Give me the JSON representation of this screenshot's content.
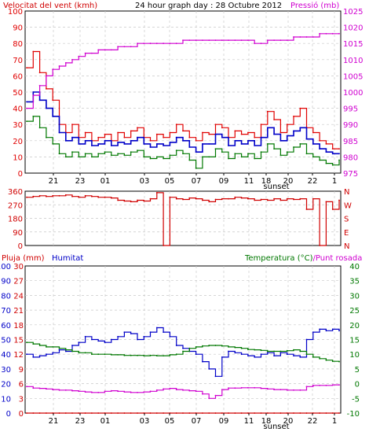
{
  "header": {
    "left_title": "Velocitat del vent (kmh)",
    "center_title": "24 hour graph day : 28 Octubre 2012",
    "right_title": "Pressió (mb)"
  },
  "colors": {
    "wind_gust": "#e00000",
    "wind_avg": "#0000c8",
    "wind_low": "#007800",
    "pressure": "#d000d0",
    "direction": "#d00000",
    "humidity": "#0000c8",
    "temperature": "#007800",
    "dewpoint": "#d000d0",
    "rain": "#d00000",
    "axis": "#000000",
    "grid": "#c8c8c8"
  },
  "time_ticks": [
    "21",
    "23",
    "01",
    "03",
    "05",
    "07",
    "09",
    "11",
    "18",
    "20",
    "22",
    "1"
  ],
  "sunset_label": "sunset",
  "chart_data": [
    {
      "type": "line",
      "id": "wind_pressure",
      "title": "24 hour graph day : 28 Octubre 2012",
      "ylabel_left": "Velocitat del vent (kmh)",
      "ylabel_right": "Pressió (mb)",
      "ylim_left": [
        0,
        100
      ],
      "ylim_right": [
        975,
        1025
      ],
      "left_ticks": [
        0,
        10,
        20,
        30,
        40,
        50,
        60,
        70,
        80,
        90,
        100
      ],
      "right_ticks": [
        975,
        980,
        985,
        990,
        995,
        1000,
        1005,
        1010,
        1015,
        1020,
        1025
      ],
      "grid": true,
      "x_index": [
        0,
        1,
        2,
        3,
        4,
        5,
        6,
        7,
        8,
        9,
        10,
        11,
        12,
        13,
        14,
        15,
        16,
        17,
        18,
        19,
        20,
        21,
        22,
        23,
        24,
        25,
        26,
        27,
        28,
        29,
        30,
        31,
        32,
        33,
        34,
        35,
        36,
        37,
        38,
        39,
        40,
        41,
        42,
        43,
        44,
        45,
        46,
        47,
        48
      ],
      "series": [
        {
          "name": "gust",
          "axis": "left",
          "values": [
            65,
            75,
            62,
            52,
            45,
            30,
            25,
            30,
            22,
            25,
            20,
            22,
            24,
            20,
            25,
            22,
            26,
            28,
            22,
            20,
            24,
            22,
            25,
            30,
            26,
            22,
            20,
            25,
            24,
            30,
            28,
            22,
            26,
            24,
            25,
            22,
            30,
            38,
            33,
            25,
            30,
            35,
            40,
            28,
            25,
            20,
            18,
            15,
            15
          ]
        },
        {
          "name": "average",
          "axis": "left",
          "values": [
            44,
            50,
            45,
            40,
            35,
            25,
            20,
            22,
            18,
            20,
            17,
            18,
            20,
            17,
            19,
            18,
            20,
            22,
            18,
            16,
            18,
            17,
            19,
            22,
            20,
            16,
            13,
            18,
            18,
            24,
            22,
            17,
            20,
            18,
            20,
            17,
            22,
            28,
            24,
            20,
            23,
            26,
            28,
            21,
            18,
            15,
            13,
            12,
            12
          ]
        },
        {
          "name": "low",
          "axis": "left",
          "values": [
            32,
            35,
            28,
            22,
            18,
            12,
            10,
            13,
            10,
            12,
            10,
            12,
            13,
            11,
            12,
            11,
            13,
            14,
            10,
            9,
            10,
            9,
            11,
            14,
            12,
            8,
            3,
            10,
            10,
            15,
            13,
            9,
            12,
            10,
            12,
            9,
            13,
            18,
            15,
            11,
            13,
            16,
            18,
            12,
            10,
            8,
            6,
            5,
            8
          ]
        },
        {
          "name": "pressure",
          "axis": "right",
          "values": [
            995,
            999,
            1002,
            1005,
            1007,
            1008,
            1009,
            1010,
            1011,
            1012,
            1012,
            1013,
            1013,
            1013,
            1014,
            1014,
            1014,
            1015,
            1015,
            1015,
            1015,
            1015,
            1015,
            1015,
            1016,
            1016,
            1016,
            1016,
            1016,
            1016,
            1016,
            1016,
            1016,
            1016,
            1016,
            1015,
            1015,
            1016,
            1016,
            1016,
            1016,
            1017,
            1017,
            1017,
            1017,
            1018,
            1018,
            1018,
            1018
          ]
        }
      ]
    },
    {
      "type": "line",
      "id": "wind_direction",
      "ylim": [
        0,
        360
      ],
      "left_ticks": [
        0,
        90,
        180,
        270,
        360
      ],
      "right_labels": [
        "N",
        "E",
        "S",
        "W",
        "N"
      ],
      "grid": true,
      "series": [
        {
          "name": "direction",
          "values": [
            320,
            325,
            330,
            325,
            330,
            330,
            335,
            325,
            320,
            330,
            325,
            320,
            320,
            315,
            300,
            295,
            290,
            300,
            295,
            310,
            350,
            0,
            320,
            310,
            305,
            315,
            310,
            300,
            290,
            305,
            310,
            310,
            320,
            315,
            310,
            300,
            305,
            300,
            310,
            300,
            310,
            305,
            310,
            240,
            310,
            0,
            290,
            240,
            300
          ]
        }
      ]
    },
    {
      "type": "line",
      "id": "humidity_temp_rain",
      "labels": {
        "rain": "Pluja (mm)",
        "humidity": "Humitat",
        "temperature_dew": "Temperatura (°C)/Punt rosada"
      },
      "ylim_rain": [
        0,
        30
      ],
      "ylim_humidity": [
        0,
        100
      ],
      "ylim_temp": [
        -10,
        40
      ],
      "rain_ticks": [
        0,
        3,
        6,
        9,
        12,
        15,
        18,
        21,
        24,
        27,
        30
      ],
      "humidity_ticks": [
        0,
        10,
        20,
        30,
        40,
        50,
        60,
        70,
        80,
        90,
        100
      ],
      "temp_ticks": [
        -10,
        -5,
        0,
        5,
        10,
        15,
        20,
        25,
        30,
        35,
        40
      ],
      "grid": true,
      "series": [
        {
          "name": "humidity",
          "axis": "humidity",
          "values": [
            40,
            38,
            39,
            40,
            41,
            43,
            42,
            46,
            48,
            52,
            50,
            49,
            48,
            50,
            52,
            55,
            54,
            50,
            52,
            55,
            58,
            55,
            52,
            46,
            44,
            42,
            40,
            35,
            30,
            25,
            38,
            42,
            41,
            40,
            39,
            38,
            40,
            41,
            39,
            41,
            40,
            39,
            38,
            50,
            55,
            57,
            56,
            57,
            56
          ]
        },
        {
          "name": "temperature",
          "axis": "temp",
          "values": [
            14,
            13.5,
            13,
            12.5,
            12.5,
            12,
            11.5,
            11,
            10.5,
            10.5,
            10,
            10,
            10,
            9.8,
            9.8,
            9.6,
            9.6,
            9.6,
            9.5,
            9.6,
            9.5,
            9.5,
            9.8,
            10,
            11,
            12,
            12.5,
            12.8,
            13,
            13,
            12.8,
            12.5,
            12.3,
            12,
            11.6,
            11.5,
            11.3,
            11,
            11,
            11,
            11.2,
            11.5,
            11,
            10,
            9,
            8.5,
            8,
            7.6,
            7.5
          ]
        },
        {
          "name": "dewpoint",
          "axis": "temp",
          "values": [
            -1,
            -1.5,
            -1.6,
            -1.8,
            -2,
            -2.2,
            -2.2,
            -2.4,
            -2.6,
            -2.8,
            -3,
            -3,
            -2.6,
            -2.4,
            -2.6,
            -2.8,
            -3,
            -3,
            -2.8,
            -2.6,
            -2.2,
            -1.8,
            -1.6,
            -2,
            -2.2,
            -2.4,
            -2.6,
            -3.5,
            -5,
            -4,
            -2,
            -1.5,
            -1.5,
            -1.4,
            -1.4,
            -1.4,
            -1.6,
            -1.8,
            -2,
            -2,
            -2.2,
            -2.2,
            -2.2,
            -1,
            -0.6,
            -0.6,
            -0.6,
            -0.4,
            -0.4
          ]
        },
        {
          "name": "rain",
          "axis": "rain",
          "values": [
            0,
            0,
            0,
            0,
            0,
            0,
            0,
            0,
            0,
            0,
            0,
            0,
            0,
            0,
            0,
            0,
            0,
            0,
            0,
            0,
            0,
            0,
            0,
            0,
            0,
            0,
            0,
            0,
            0,
            0,
            0,
            0,
            0,
            0,
            0,
            0,
            0,
            0,
            0,
            0,
            0,
            0,
            0,
            0,
            0,
            0,
            0,
            0,
            0
          ]
        }
      ]
    }
  ]
}
